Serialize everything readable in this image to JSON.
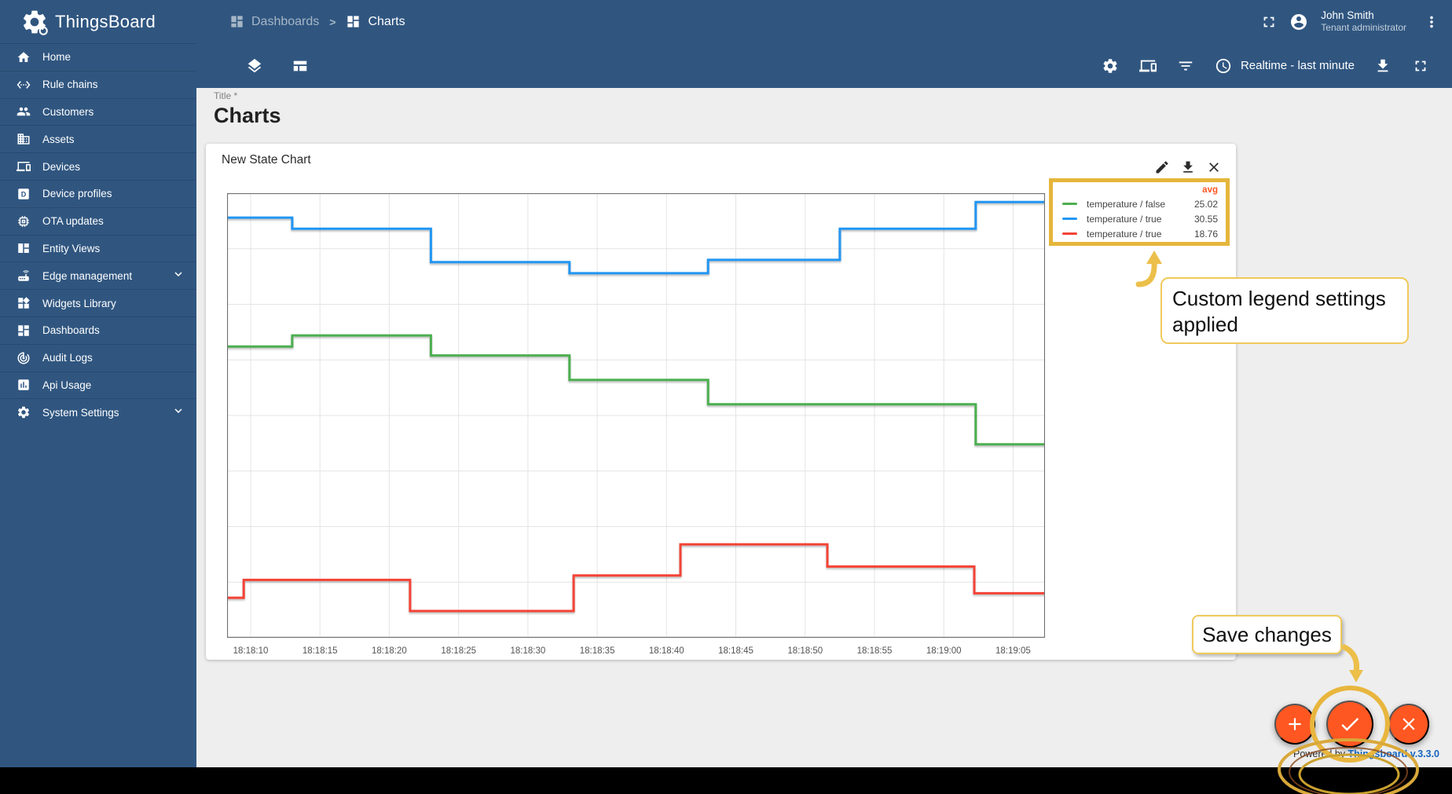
{
  "header": {
    "brand": "ThingsBoard",
    "breadcrumb": [
      {
        "label": "Dashboards",
        "current": false
      },
      {
        "label": "Charts",
        "current": true
      }
    ],
    "user": {
      "name": "John Smith",
      "role": "Tenant administrator"
    }
  },
  "sidebar": {
    "items": [
      {
        "label": "Home",
        "icon": "home",
        "expandable": false
      },
      {
        "label": "Rule chains",
        "icon": "rule-chains",
        "expandable": false
      },
      {
        "label": "Customers",
        "icon": "customers",
        "expandable": false
      },
      {
        "label": "Assets",
        "icon": "assets",
        "expandable": false
      },
      {
        "label": "Devices",
        "icon": "devices",
        "expandable": false
      },
      {
        "label": "Device profiles",
        "icon": "device-profiles",
        "expandable": false
      },
      {
        "label": "OTA updates",
        "icon": "ota-updates",
        "expandable": false
      },
      {
        "label": "Entity Views",
        "icon": "entity-views",
        "expandable": false
      },
      {
        "label": "Edge management",
        "icon": "edge-management",
        "expandable": true
      },
      {
        "label": "Widgets Library",
        "icon": "widgets-library",
        "expandable": false
      },
      {
        "label": "Dashboards",
        "icon": "dashboards",
        "expandable": false
      },
      {
        "label": "Audit Logs",
        "icon": "audit-logs",
        "expandable": false
      },
      {
        "label": "Api Usage",
        "icon": "api-usage",
        "expandable": false
      },
      {
        "label": "System Settings",
        "icon": "system-settings",
        "expandable": true
      }
    ]
  },
  "toolbar": {
    "timewindow_label": "Realtime - last minute"
  },
  "page": {
    "title_field_label": "Title *",
    "title": "Charts"
  },
  "widget": {
    "title": "New State Chart",
    "legend": {
      "header_label": "avg",
      "items": [
        {
          "label": "temperature / false",
          "value": "25.02",
          "color": "#4caf50"
        },
        {
          "label": "temperature / true",
          "value": "30.55",
          "color": "#2196f3"
        },
        {
          "label": "temperature / true",
          "value": "18.76",
          "color": "#f44336"
        }
      ]
    }
  },
  "annotations": {
    "legend_note": "Custom legend settings applied",
    "save_note": "Save changes"
  },
  "footer": {
    "powered_prefix": "Powered by ",
    "powered_link": "Thingsboard v.3.3.0"
  },
  "colors": {
    "primary": "#305680",
    "accent": "#ff5722",
    "highlight_gold": "#e5b63c",
    "link_blue": "#1565c0",
    "avg_label": "#ff5722"
  },
  "chart_data": {
    "type": "line",
    "subtype": "step-after",
    "title": "New State Chart",
    "xlabel": "",
    "ylabel": "",
    "grid": true,
    "legend_position": "top-right",
    "x_range_seconds": [
      8.3,
      67.3
    ],
    "time_base": "18:18:00",
    "ylim": [
      14,
      34
    ],
    "x_ticks": [
      {
        "t": 10,
        "label": "18:18:10"
      },
      {
        "t": 15,
        "label": "18:18:15"
      },
      {
        "t": 20,
        "label": "18:18:20"
      },
      {
        "t": 25,
        "label": "18:18:25"
      },
      {
        "t": 30,
        "label": "18:18:30"
      },
      {
        "t": 35,
        "label": "18:18:35"
      },
      {
        "t": 40,
        "label": "18:18:40"
      },
      {
        "t": 45,
        "label": "18:18:45"
      },
      {
        "t": 50,
        "label": "18:18:50"
      },
      {
        "t": 55,
        "label": "18:18:55"
      },
      {
        "t": 60,
        "label": "18:19:00"
      },
      {
        "t": 65,
        "label": "18:19:05"
      }
    ],
    "series": [
      {
        "name": "temperature / true",
        "color": "#2196f3",
        "avg": 30.55,
        "points": [
          [
            8.3,
            32.9
          ],
          [
            13,
            32.4
          ],
          [
            23,
            30.9
          ],
          [
            33,
            30.4
          ],
          [
            43,
            31.0
          ],
          [
            52.5,
            32.4
          ],
          [
            62.3,
            33.6
          ],
          [
            67.3,
            33.6
          ]
        ]
      },
      {
        "name": "temperature / false",
        "color": "#4caf50",
        "avg": 25.02,
        "points": [
          [
            8.3,
            27.1
          ],
          [
            13,
            27.6
          ],
          [
            23,
            26.7
          ],
          [
            33,
            25.6
          ],
          [
            43,
            24.5
          ],
          [
            62.3,
            22.7
          ],
          [
            67.3,
            22.7
          ]
        ]
      },
      {
        "name": "temperature / true",
        "color": "#f44336",
        "avg": 18.76,
        "points": [
          [
            8.3,
            15.8
          ],
          [
            9.5,
            16.6
          ],
          [
            21.5,
            15.2
          ],
          [
            33.3,
            16.8
          ],
          [
            41,
            18.2
          ],
          [
            51.6,
            17.2
          ],
          [
            62.2,
            16.0
          ],
          [
            67.3,
            16.0
          ]
        ]
      }
    ]
  }
}
